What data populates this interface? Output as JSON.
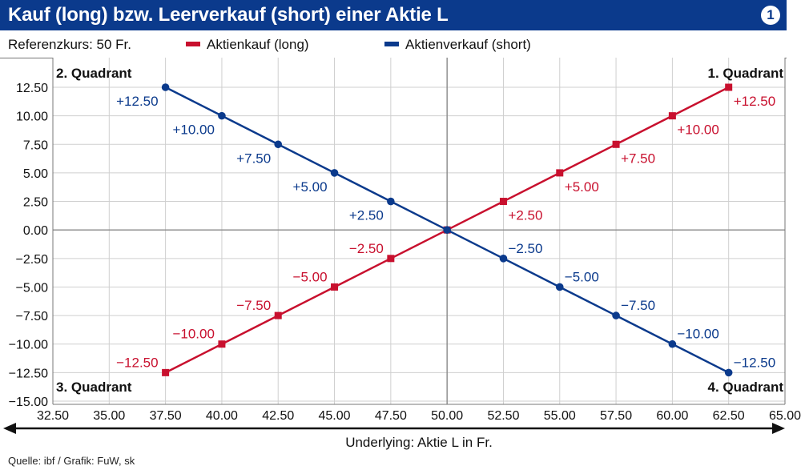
{
  "title": "Kauf (long) bzw. Leerverkauf (short) einer Aktie L",
  "badge": "1",
  "reference": "Referenzkurs: 50 Fr.",
  "source": "Quelle: ibf / Grafik: FuW, sk",
  "colors": {
    "long": "#c8102e",
    "short": "#0b3a8c",
    "header": "#0b3a8c"
  },
  "chart_data": {
    "type": "line",
    "xlabel": "Underlying: Aktie L in Fr.",
    "ylabel": "",
    "xlim": [
      32.5,
      65.0
    ],
    "ylim": [
      -15.0,
      12.5
    ],
    "x_ticks": [
      "32.50",
      "35.00",
      "37.50",
      "40.00",
      "42.50",
      "45.00",
      "47.50",
      "50.00",
      "52.50",
      "55.00",
      "57.50",
      "60.00",
      "62.50",
      "65.00"
    ],
    "y_ticks": [
      "12.50",
      "10.00",
      "7.50",
      "5.00",
      "2.50",
      "0.00",
      "−2.50",
      "−5.00",
      "−7.50",
      "−10.00",
      "−12.50",
      "−15.00"
    ],
    "grid": true,
    "legend": "top",
    "quadrants": {
      "q1": "1. Quadrant",
      "q2": "2. Quadrant",
      "q3": "3. Quadrant",
      "q4": "4. Quadrant"
    },
    "x": [
      37.5,
      40,
      42.5,
      45,
      47.5,
      50,
      52.5,
      55,
      57.5,
      60,
      62.5
    ],
    "series": [
      {
        "name": "Aktienkauf (long)",
        "key": "long",
        "values": [
          -12.5,
          -10,
          -7.5,
          -5,
          -2.5,
          0,
          2.5,
          5,
          7.5,
          10,
          12.5
        ],
        "labels": [
          "−12.50",
          "−10.00",
          "−7.50",
          "−5.00",
          "−2.50",
          "",
          "+2.50",
          "+5.00",
          "+7.50",
          "+10.00",
          "+12.50"
        ]
      },
      {
        "name": "Aktienverkauf (short)",
        "key": "short",
        "values": [
          12.5,
          10,
          7.5,
          5,
          2.5,
          0,
          -2.5,
          -5,
          -7.5,
          -10,
          -12.5
        ],
        "labels": [
          "+12.50",
          "+10.00",
          "+7.50",
          "+5.00",
          "+2.50",
          "",
          "−2.50",
          "−5.00",
          "−7.50",
          "−10.00",
          "−12.50"
        ]
      }
    ]
  }
}
